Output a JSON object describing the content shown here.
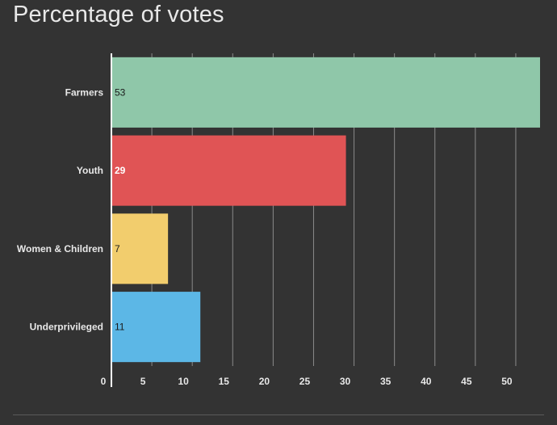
{
  "chart_data": {
    "type": "bar",
    "orientation": "horizontal",
    "title": "Percentage of votes",
    "categories": [
      "Farmers",
      "Youth",
      "Women & Children",
      "Underprivileged"
    ],
    "values": [
      53,
      29,
      7,
      11
    ],
    "value_labels": [
      "53",
      "29",
      "7",
      "11"
    ],
    "colors": [
      "#8fc7a9",
      "#e05455",
      "#f2cd6d",
      "#5cb7e6"
    ],
    "label_colors": [
      "#1a1a1a",
      "#ffffff",
      "#1a1a1a",
      "#1a1a1a"
    ],
    "xlim": [
      0,
      53
    ],
    "x_ticks": [
      0,
      5,
      10,
      15,
      20,
      25,
      30,
      35,
      40,
      45,
      50
    ],
    "x_tick_labels": [
      "0",
      "5",
      "10",
      "15",
      "20",
      "25",
      "30",
      "35",
      "40",
      "45",
      "50"
    ],
    "xlabel": "",
    "ylabel": "",
    "grid": true,
    "legend": "none"
  },
  "colors": {
    "background": "#333333",
    "gridline": "#8a8a8a",
    "axis": "#ffffff",
    "text": "#e8e8e8"
  }
}
